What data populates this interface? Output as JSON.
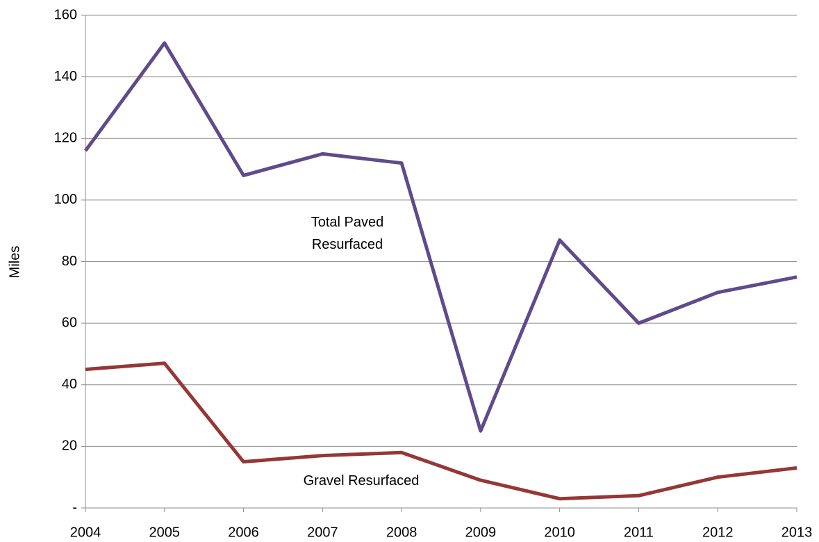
{
  "chart_data": {
    "type": "line",
    "y_label": "Miles",
    "x": [
      2004,
      2005,
      2006,
      2007,
      2008,
      2009,
      2010,
      2011,
      2012,
      2013
    ],
    "xlim": [
      2004,
      2013
    ],
    "xticks": [
      2004,
      2005,
      2006,
      2007,
      2008,
      2009,
      2010,
      2011,
      2012,
      2013
    ],
    "ylim": [
      0,
      160
    ],
    "yticks": [
      {
        "value": 0,
        "label": "-"
      },
      20,
      40,
      60,
      80,
      100,
      120,
      140,
      160
    ],
    "grid": true,
    "series": [
      {
        "name": "Total Paved Resurfaced",
        "color": "#5f4b8b",
        "values": [
          116,
          151,
          108,
          115,
          112,
          25,
          87,
          60,
          70,
          75
        ]
      },
      {
        "name": "Gravel Resurfaced",
        "color": "#953735",
        "values": [
          45,
          47,
          15,
          17,
          18,
          9,
          3,
          4,
          10,
          13
        ]
      }
    ]
  }
}
